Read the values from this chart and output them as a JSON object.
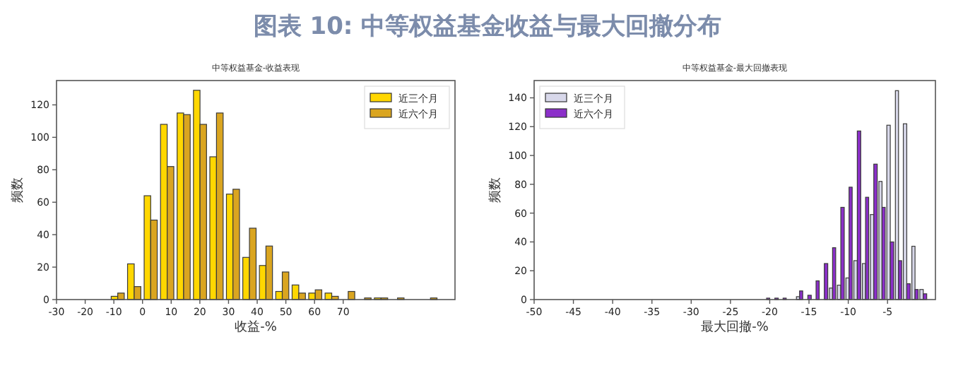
{
  "chart_data": [
    {
      "type": "histogram",
      "title": "中等权益基金-收益表现",
      "xlabel": "收益-%",
      "ylabel": "频数",
      "annotations": [
        "图表 10: 中等权益基金收益与最大回撤分布"
      ],
      "bins": [
        -11.5,
        -5.8,
        0,
        5.7,
        11.5,
        17.2,
        22.9,
        28.7,
        34.4,
        40.2,
        45.9,
        51.6,
        57.4,
        63.1,
        68.9,
        74.6,
        80.3,
        86.1,
        91.8,
        97.6,
        103.3
      ],
      "series": [
        {
          "name": "近三个月",
          "color": "#ffd700",
          "values": [
            2,
            22,
            64,
            108,
            115,
            129,
            88,
            65,
            26,
            21,
            5,
            9,
            4,
            4,
            0,
            0,
            1,
            0,
            0,
            0
          ]
        },
        {
          "name": "近六个月",
          "color": "#daa520",
          "values": [
            4,
            8,
            49,
            82,
            114,
            108,
            115,
            68,
            44,
            33,
            17,
            4,
            6,
            2,
            5,
            1,
            1,
            1,
            0,
            1
          ]
        }
      ],
      "xlim": [
        -30,
        109
      ],
      "xticks": [
        -30,
        -20,
        -10,
        0,
        10,
        20,
        30,
        40,
        50,
        60,
        70
      ],
      "ylim": [
        0,
        135
      ],
      "yticks": [
        0,
        20,
        40,
        60,
        80,
        100,
        120
      ],
      "legend": "top right",
      "grid": false
    },
    {
      "type": "histogram",
      "title": "中等权益基金-最大回撤表现",
      "xlabel": "最大回撤-%",
      "ylabel": "频数",
      "bins": [
        -20.9,
        -19.9,
        -18.8,
        -17.8,
        -16.7,
        -15.7,
        -14.6,
        -13.6,
        -12.5,
        -11.5,
        -10.4,
        -9.4,
        -8.3,
        -7.3,
        -6.2,
        -5.2,
        -4.1,
        -3.1,
        -2.0,
        -1.0,
        0.1
      ],
      "series": [
        {
          "name": "近三个月",
          "color": "#d8d8ea",
          "values": [
            0,
            0,
            0,
            0,
            2,
            null,
            null,
            null,
            8,
            10,
            15,
            27,
            25,
            59,
            82,
            121,
            145,
            122,
            37,
            7
          ]
        },
        {
          "name": "近六个月",
          "color": "#8b2fc9",
          "values": [
            1,
            1,
            1,
            0,
            6,
            3,
            13,
            25,
            36,
            64,
            78,
            117,
            71,
            94,
            64,
            40,
            27,
            11,
            7,
            4
          ]
        }
      ],
      "xlim": [
        -50,
        1.1
      ],
      "xticks": [
        -50,
        -45,
        -40,
        -35,
        -30,
        -25,
        -20,
        -15,
        -10,
        -5
      ],
      "ylim": [
        0,
        152
      ],
      "yticks": [
        0,
        20,
        40,
        60,
        80,
        100,
        120,
        140
      ],
      "legend": "top left",
      "grid": false
    }
  ]
}
